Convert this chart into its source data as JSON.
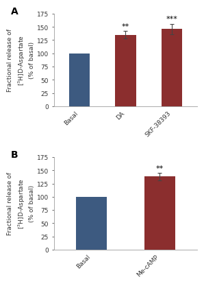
{
  "panel_A": {
    "categories": [
      "Basal",
      "DA",
      "SKF-38393"
    ],
    "values": [
      100,
      135,
      146
    ],
    "errors": [
      0,
      7,
      10
    ],
    "colors": [
      "#3d5a80",
      "#8b2e2e",
      "#8b2e2e"
    ],
    "sig_labels": [
      "",
      "**",
      "***"
    ],
    "panel_label": "A"
  },
  "panel_B": {
    "categories": [
      "Basal",
      "Me-cAMP"
    ],
    "values": [
      100,
      138
    ],
    "errors": [
      0,
      7
    ],
    "colors": [
      "#3d5a80",
      "#8b2e2e"
    ],
    "sig_labels": [
      "",
      "**"
    ],
    "panel_label": "B"
  },
  "ylabel": "Fractional release of\n[$^3$H]D-Aspartate\n(% of basal)",
  "ylim": [
    0,
    175
  ],
  "yticks": [
    0,
    25,
    50,
    75,
    100,
    125,
    150,
    175
  ],
  "bar_width": 0.45,
  "tick_fontsize": 6.5,
  "label_fontsize": 6.5,
  "sig_fontsize": 8,
  "panel_label_fontsize": 10
}
